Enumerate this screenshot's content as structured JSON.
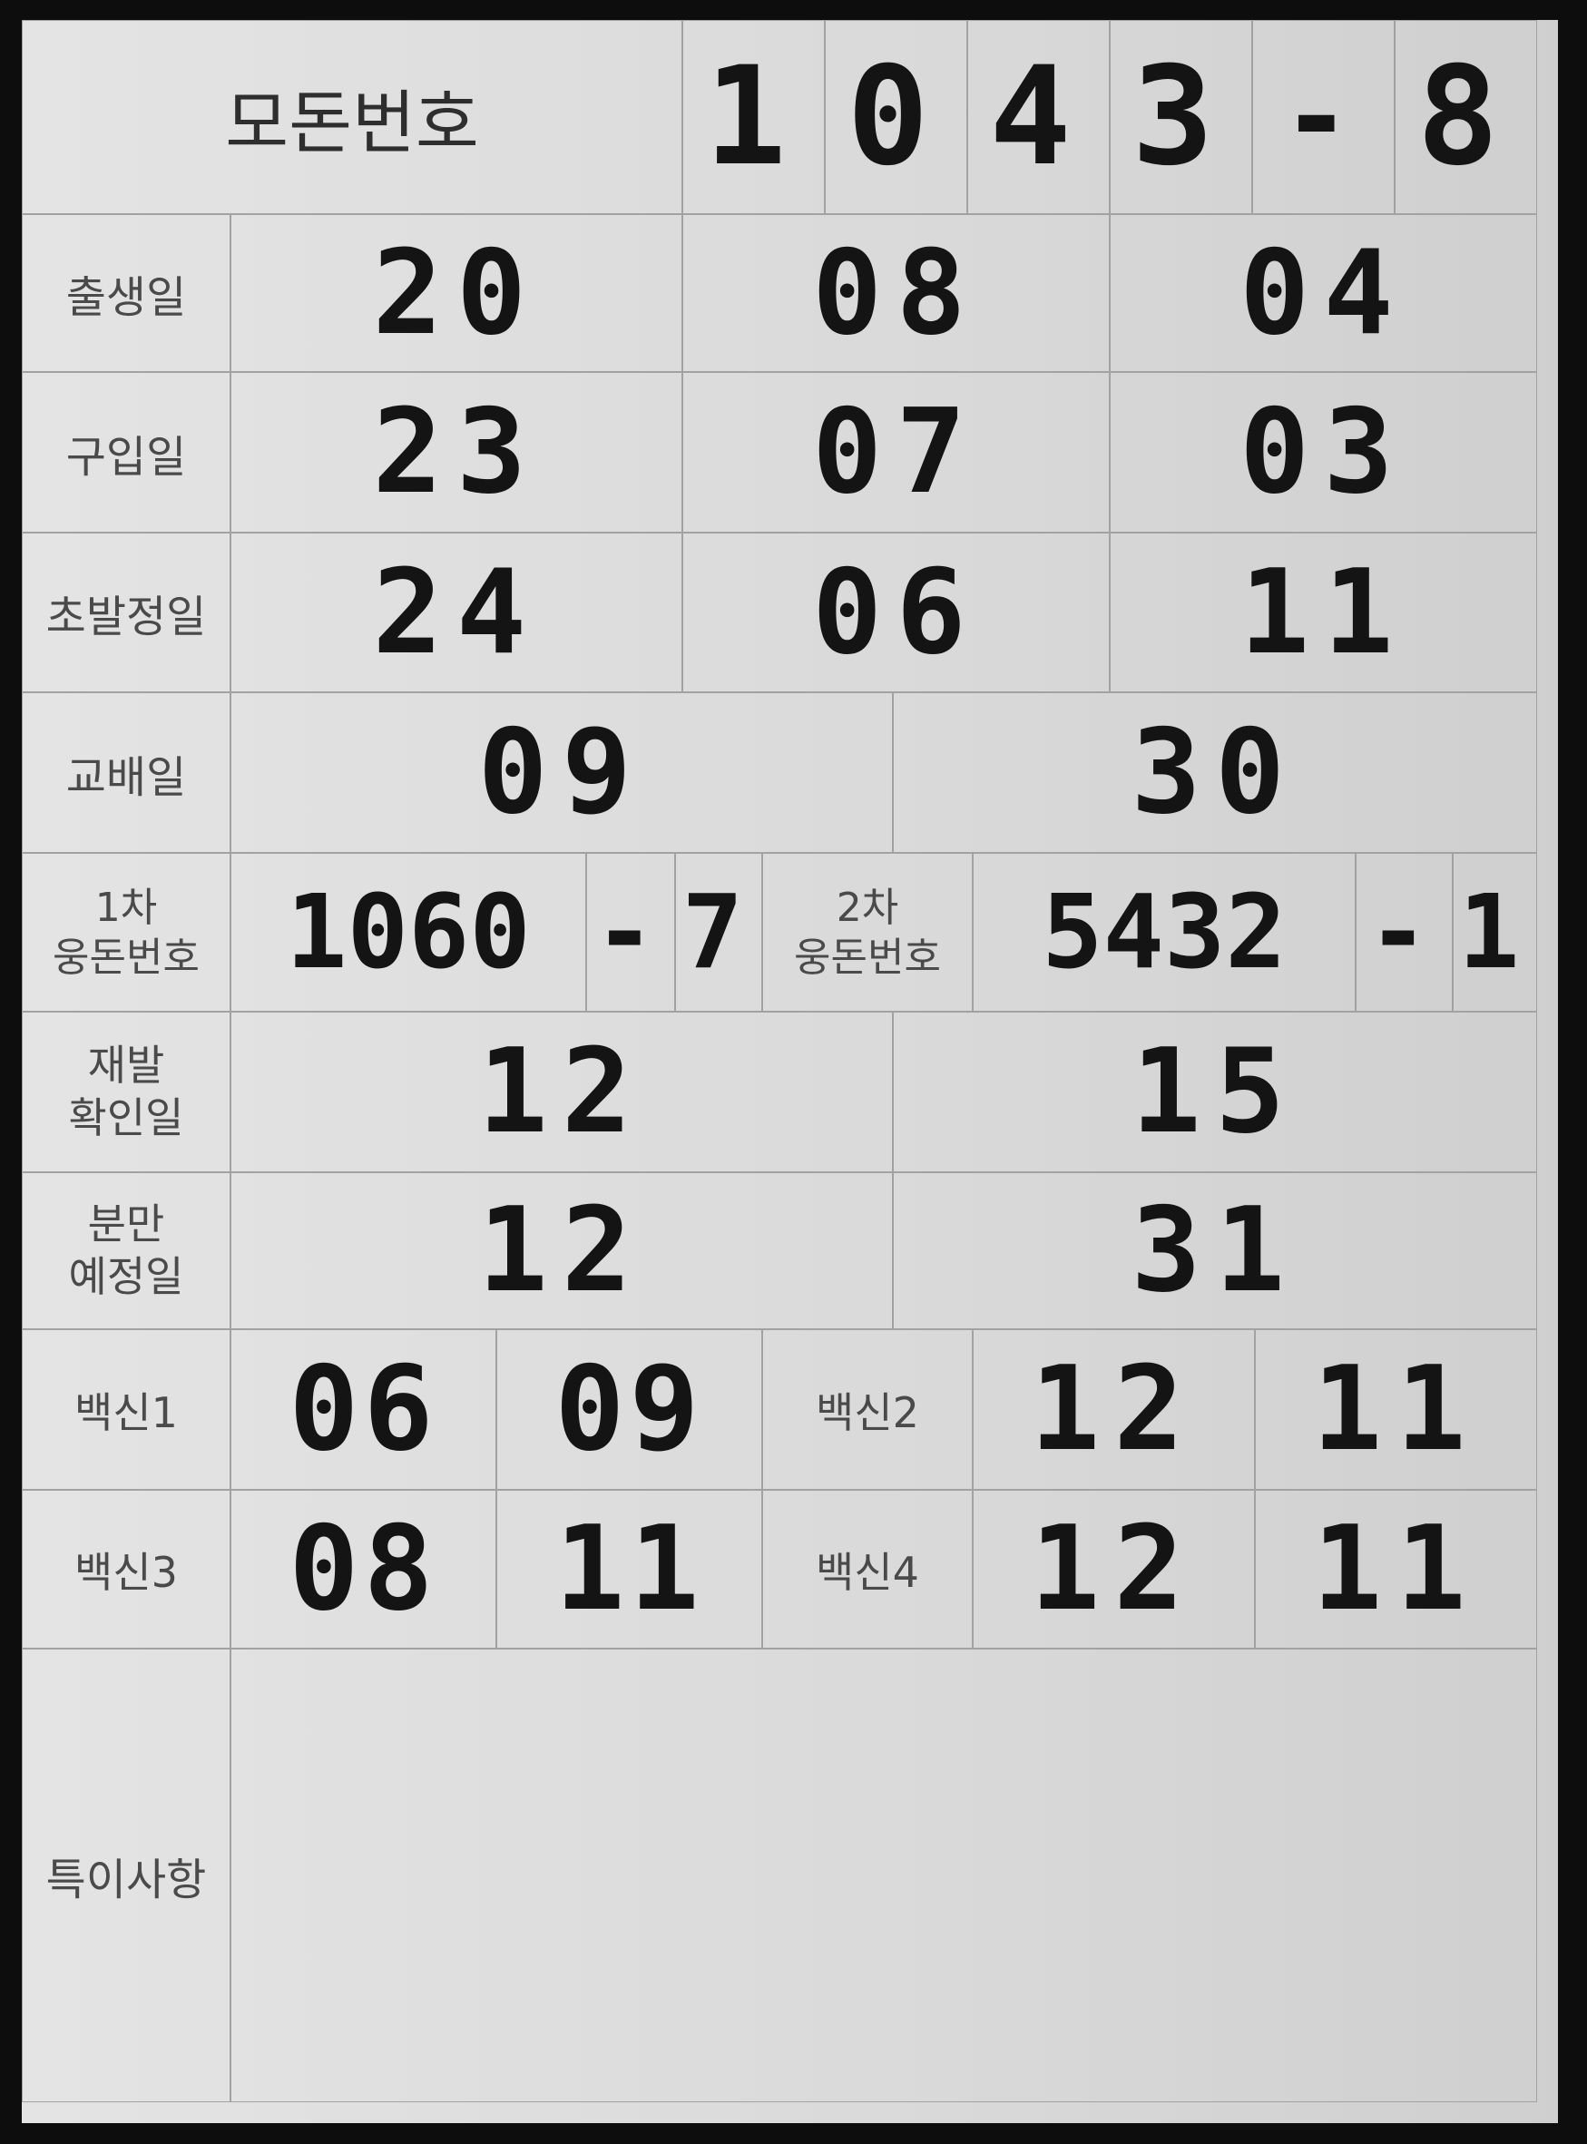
{
  "header": {
    "label": "모돈번호",
    "digits": [
      "1",
      "0",
      "4",
      "3"
    ],
    "dash": "-",
    "suffix": "8"
  },
  "rows": {
    "birth": {
      "label": "출생일",
      "yy": "20",
      "mm": "08",
      "dd": "04"
    },
    "purchase": {
      "label": "구입일",
      "yy": "23",
      "mm": "07",
      "dd": "03"
    },
    "first_heat": {
      "label": "초발정일",
      "yy": "24",
      "mm": "06",
      "dd": "11"
    },
    "mating": {
      "label": "교배일",
      "mm": "09",
      "dd": "30"
    },
    "boar": {
      "label1_line1": "1차",
      "label1_line2": "웅돈번호",
      "boar1_number": "1060",
      "boar1_dash": "-",
      "boar1_suffix": "7",
      "label2_line1": "2차",
      "label2_line2": "웅돈번호",
      "boar2_number": "5432",
      "boar2_dash": "-",
      "boar2_suffix": "1"
    },
    "recheck": {
      "label_line1": "재발",
      "label_line2": "확인일",
      "mm": "12",
      "dd": "15"
    },
    "due": {
      "label_line1": "분만",
      "label_line2": "예정일",
      "mm": "12",
      "dd": "31"
    },
    "vaccine_a": {
      "label1": "백신1",
      "v1_mm": "06",
      "v1_dd": "09",
      "label2": "백신2",
      "v2_mm": "12",
      "v2_dd": "11"
    },
    "vaccine_b": {
      "label1": "백신3",
      "v3_mm": "08",
      "v3_dd": "11",
      "label2": "백신4",
      "v4_mm": "12",
      "v4_dd": "11"
    },
    "notes": {
      "label": "특이사항",
      "value": ""
    }
  }
}
